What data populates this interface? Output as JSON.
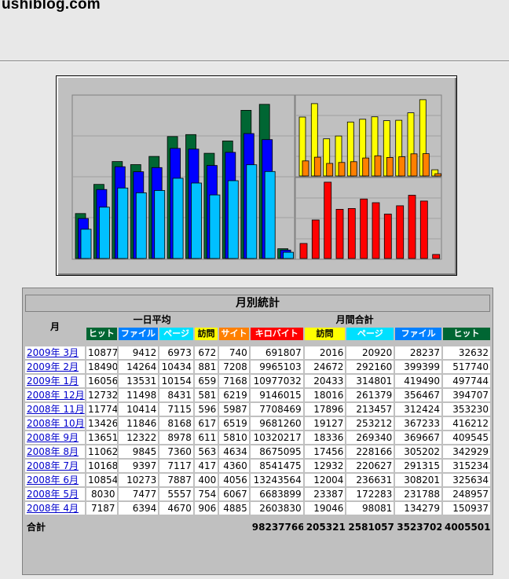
{
  "site": {
    "title": "ushiblog.com"
  },
  "table": {
    "title": "月別統計",
    "month_header": "月",
    "daily_avg_header": "一日平均",
    "monthly_total_header": "月間合計",
    "total_label": "合計",
    "daily_cols": [
      "ヒット",
      "ファイル",
      "ページ",
      "訪問"
    ],
    "monthly_cols": [
      "サイト",
      "キロバイト",
      "訪問",
      "ページ",
      "ファイル",
      "ヒット"
    ],
    "rows": [
      [
        "2009年 3月",
        "10877",
        "9412",
        "6973",
        "672",
        "740",
        "691807",
        "2016",
        "20920",
        "28237",
        "32632"
      ],
      [
        "2009年 2月",
        "18490",
        "14264",
        "10434",
        "881",
        "7208",
        "9965103",
        "24672",
        "292160",
        "399399",
        "517740"
      ],
      [
        "2009年 1月",
        "16056",
        "13531",
        "10154",
        "659",
        "7168",
        "10977032",
        "20433",
        "314801",
        "419490",
        "497744"
      ],
      [
        "2008年 12月",
        "12732",
        "11498",
        "8431",
        "581",
        "6219",
        "9146015",
        "18016",
        "261379",
        "356467",
        "394707"
      ],
      [
        "2008年 11月",
        "11774",
        "10414",
        "7115",
        "596",
        "5987",
        "7708469",
        "17896",
        "213457",
        "312424",
        "353230"
      ],
      [
        "2008年 10月",
        "13426",
        "11846",
        "8168",
        "617",
        "6519",
        "9681260",
        "19127",
        "253212",
        "367233",
        "416212"
      ],
      [
        "2008年 9月",
        "13651",
        "12322",
        "8978",
        "611",
        "5810",
        "10320217",
        "18336",
        "269340",
        "369667",
        "409545"
      ],
      [
        "2008年 8月",
        "11062",
        "9845",
        "7360",
        "563",
        "4634",
        "8675095",
        "17456",
        "228166",
        "305202",
        "342929"
      ],
      [
        "2008年 7月",
        "10168",
        "9397",
        "7117",
        "417",
        "4360",
        "8541475",
        "12932",
        "220627",
        "291315",
        "315234"
      ],
      [
        "2008年 6月",
        "10854",
        "10273",
        "7887",
        "400",
        "4056",
        "13243564",
        "12004",
        "236631",
        "308201",
        "325634"
      ],
      [
        "2008年 5月",
        "8030",
        "7477",
        "5557",
        "754",
        "6067",
        "6683899",
        "23387",
        "172283",
        "231788",
        "248957"
      ],
      [
        "2008年 4月",
        "7187",
        "6394",
        "4670",
        "906",
        "4885",
        "2603830",
        "19046",
        "98081",
        "134279",
        "150937"
      ]
    ],
    "totals": [
      "98237766",
      "205321",
      "2581057",
      "3523702",
      "4005501"
    ]
  },
  "chart_data": {
    "type": "bar",
    "categories": [
      "2008-04",
      "2008-05",
      "2008-06",
      "2008-07",
      "2008-08",
      "2008-09",
      "2008-10",
      "2008-11",
      "2008-12",
      "2009-01",
      "2009-02",
      "2009-03"
    ],
    "panels": [
      {
        "name": "main",
        "series": [
          {
            "name": "ヒット",
            "color": "#006633",
            "values": [
              150937,
              248957,
              325634,
              315234,
              342929,
              409545,
              416212,
              353230,
              394707,
              497744,
              517740,
              32632
            ]
          },
          {
            "name": "ファイル",
            "color": "#0000ff",
            "values": [
              134279,
              231788,
              308201,
              291315,
              305202,
              369667,
              367233,
              312424,
              356467,
              419490,
              399399,
              28237
            ]
          },
          {
            "name": "ページ",
            "color": "#00c0ff",
            "values": [
              98081,
              172283,
              236631,
              220627,
              228166,
              269340,
              253212,
              213457,
              261379,
              314801,
              292160,
              20920
            ]
          }
        ]
      },
      {
        "name": "visits-sites",
        "series": [
          {
            "name": "訪問",
            "color": "#ffff00",
            "values": [
              19046,
              23387,
              12004,
              12932,
              17456,
              18336,
              19127,
              17896,
              18016,
              20433,
              24672,
              2016
            ]
          },
          {
            "name": "サイト",
            "color": "#ff8000",
            "values": [
              4885,
              6067,
              4056,
              4360,
              4634,
              5810,
              6519,
              5987,
              6219,
              7168,
              7208,
              740
            ]
          }
        ]
      },
      {
        "name": "kilobytes",
        "series": [
          {
            "name": "キロバイト",
            "color": "#ff0000",
            "values": [
              2603830,
              6683899,
              13243564,
              8541475,
              8675095,
              10320217,
              9681260,
              7708469,
              9146015,
              10977032,
              9965103,
              691807
            ]
          }
        ]
      }
    ]
  }
}
